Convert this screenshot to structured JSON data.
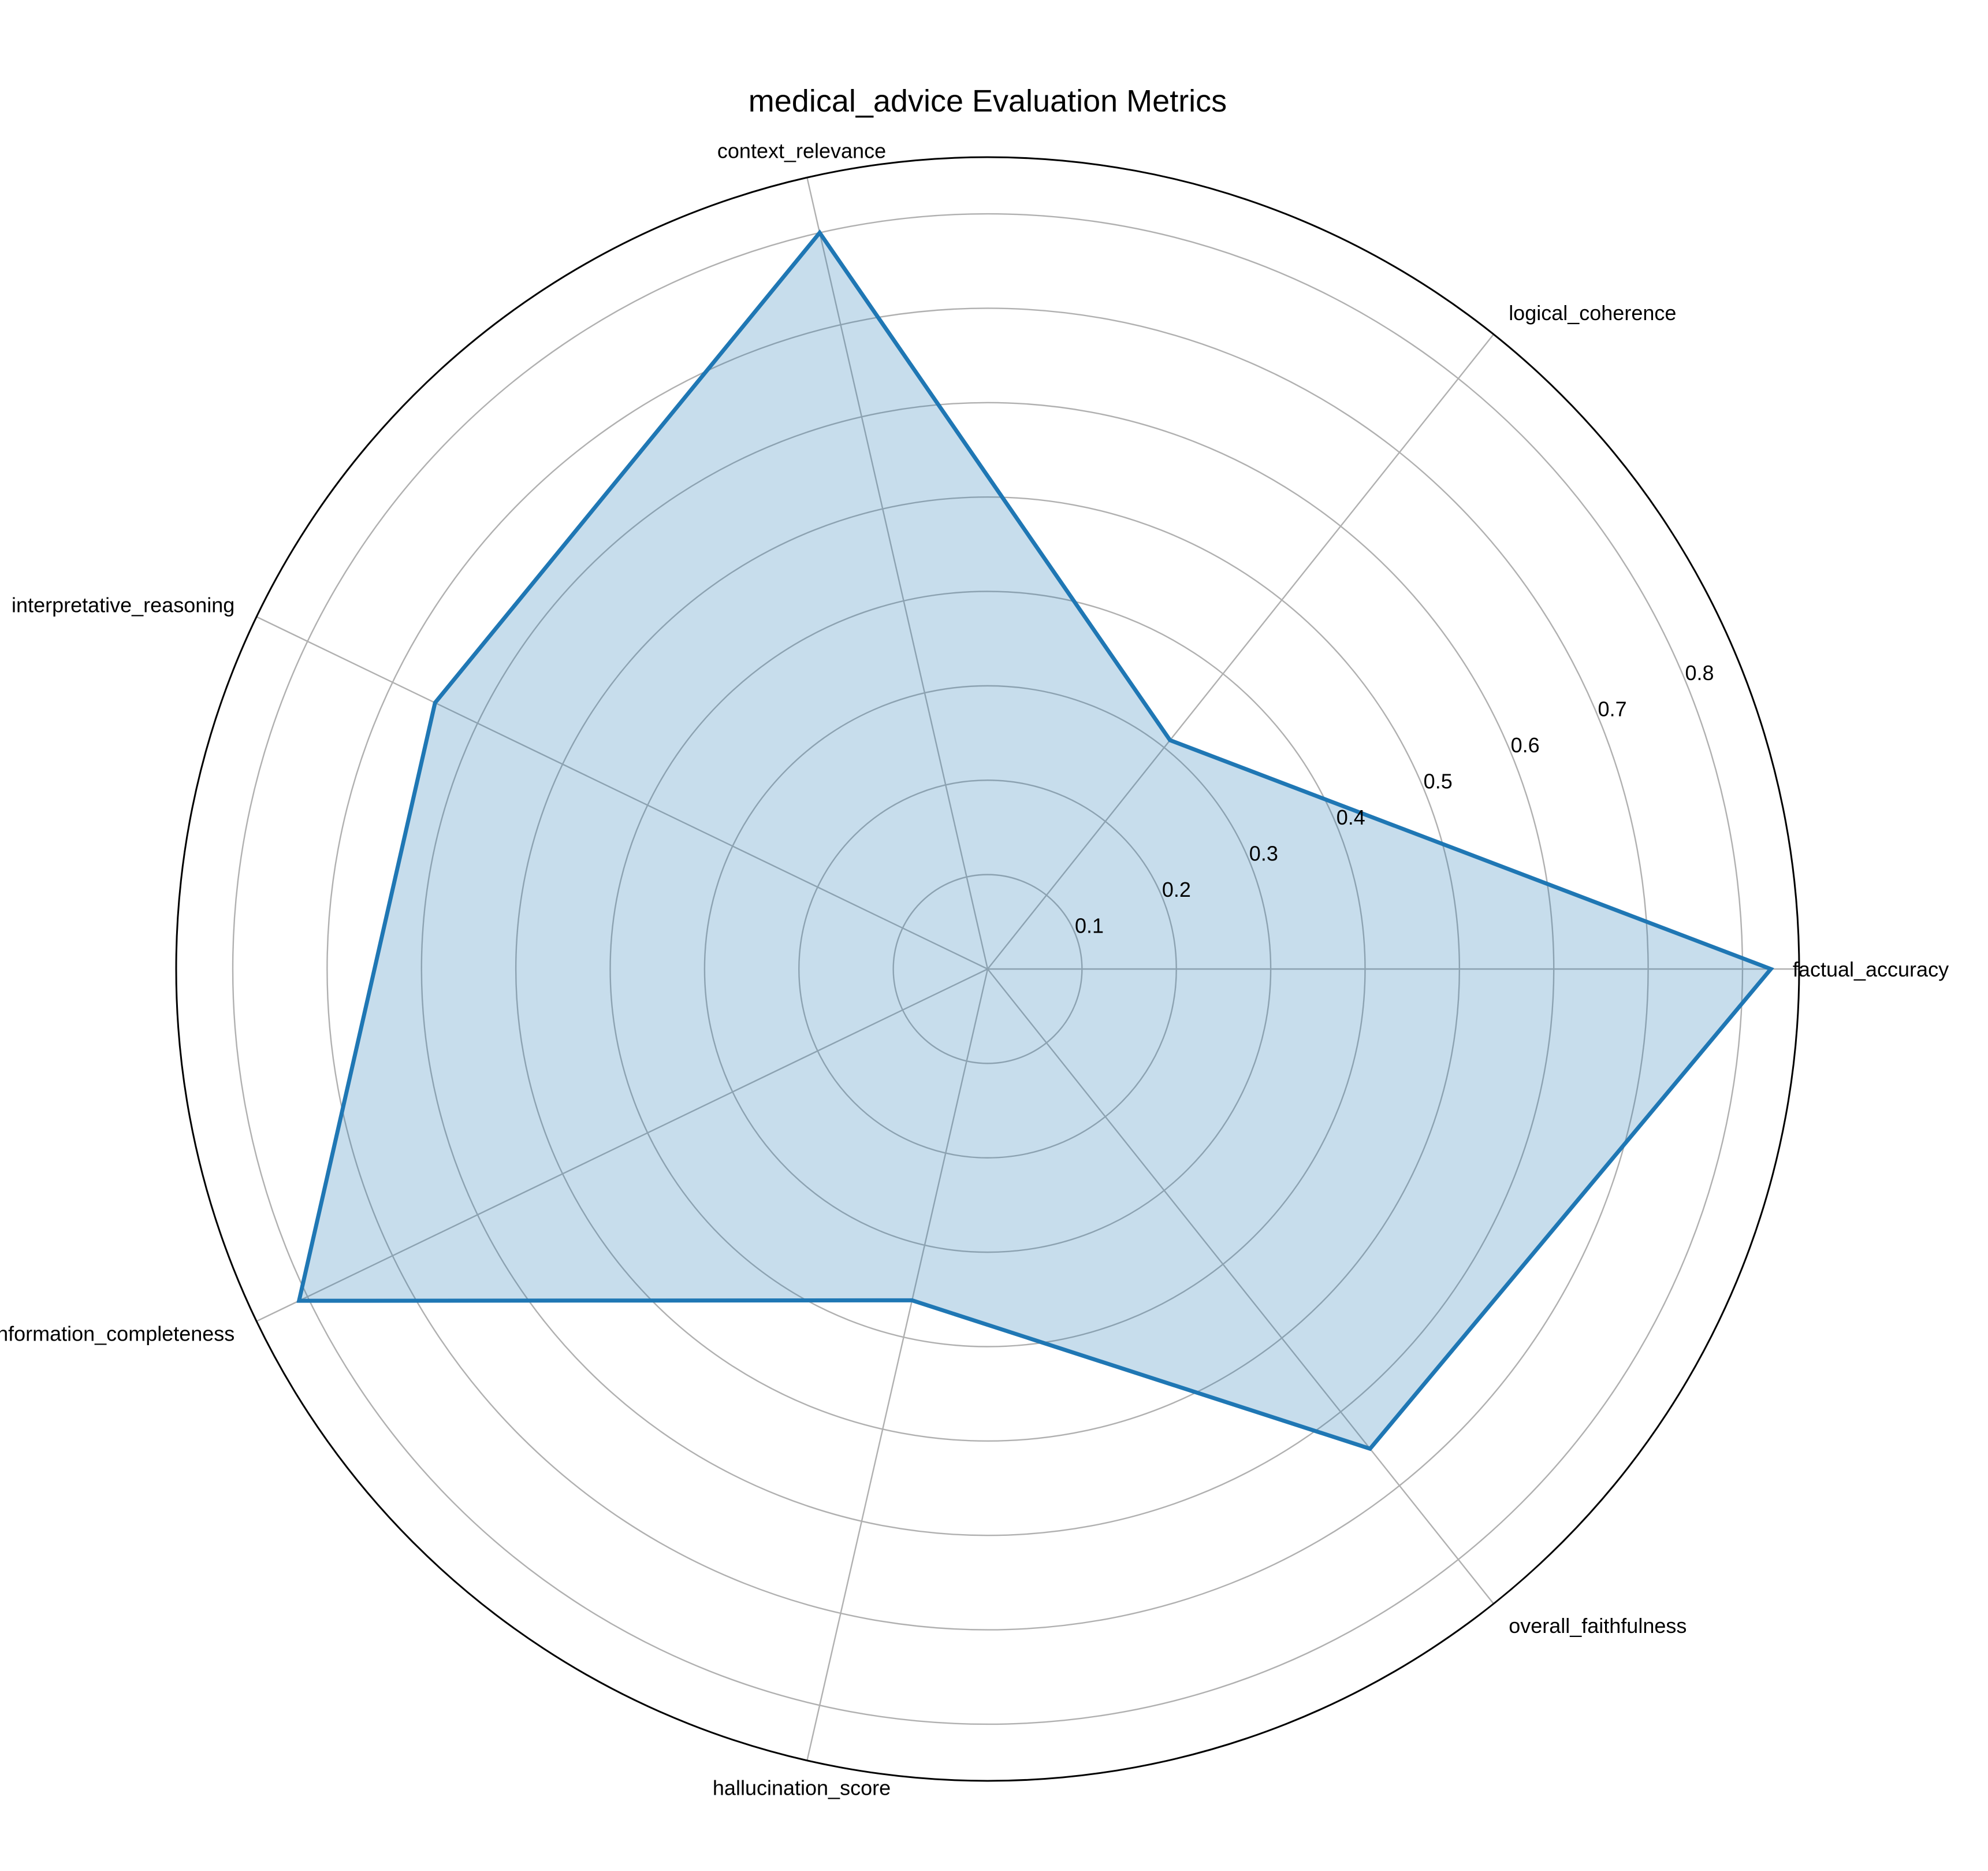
{
  "chart_data": {
    "type": "radar",
    "title": "medical_advice Evaluation Metrics",
    "categories": [
      "factual_accuracy",
      "logical_coherence",
      "context_relevance",
      "interpretative_reasoning",
      "information_completeness",
      "hallucination_score",
      "overall_faithfulness"
    ],
    "series": [
      {
        "values": [
          0.83,
          0.31,
          0.8,
          0.65,
          0.81,
          0.36,
          0.65
        ]
      }
    ],
    "radial_ticks": [
      0.1,
      0.2,
      0.3,
      0.4,
      0.5,
      0.6,
      0.7,
      0.8
    ],
    "radial_tick_labels": [
      "0.1",
      "0.2",
      "0.3",
      "0.4",
      "0.5",
      "0.6",
      "0.7",
      "0.8"
    ],
    "rlim": [
      0,
      0.86
    ],
    "grid": true,
    "legend": false,
    "colors": {
      "line": "#1f77b4",
      "fill": "#1f77b4",
      "grid": "#b0b0b0",
      "frame": "#000000"
    }
  }
}
